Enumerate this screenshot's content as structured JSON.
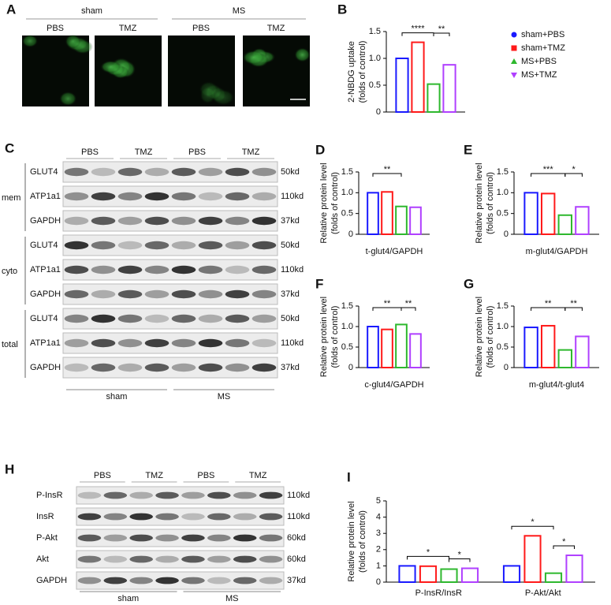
{
  "figure": {
    "A": {
      "label": "A",
      "groups": [
        "sham",
        "MS"
      ],
      "conditions": [
        "PBS",
        "TMZ",
        "PBS",
        "TMZ"
      ]
    },
    "C": {
      "label": "C",
      "conditions": [
        "PBS",
        "TMZ",
        "PBS",
        "TMZ"
      ],
      "groups": [
        "sham",
        "MS"
      ],
      "sections": [
        {
          "name": "mem",
          "rows": [
            {
              "protein": "GLUT4",
              "size": "50kd"
            },
            {
              "protein": "ATP1a1",
              "size": "110kd"
            },
            {
              "protein": "GAPDH",
              "size": "37kd"
            }
          ]
        },
        {
          "name": "cyto",
          "rows": [
            {
              "protein": "GLUT4",
              "size": "50kd"
            },
            {
              "protein": "ATP1a1",
              "size": "110kd"
            },
            {
              "protein": "GAPDH",
              "size": "37kd"
            }
          ]
        },
        {
          "name": "total",
          "rows": [
            {
              "protein": "GLUT4",
              "size": "50kd"
            },
            {
              "protein": "ATP1a1",
              "size": "110kd"
            },
            {
              "protein": "GAPDH",
              "size": "37kd"
            }
          ]
        }
      ]
    },
    "H": {
      "label": "H",
      "conditions": [
        "PBS",
        "TMZ",
        "PBS",
        "TMZ"
      ],
      "groups": [
        "sham",
        "MS"
      ],
      "rows": [
        {
          "protein": "P-InsR",
          "size": "110kd"
        },
        {
          "protein": "InsR",
          "size": "110kd"
        },
        {
          "protein": "P-Akt",
          "size": "60kd"
        },
        {
          "protein": "Akt",
          "size": "60kd"
        },
        {
          "protein": "GAPDH",
          "size": "37kd"
        }
      ]
    }
  },
  "chart_data": [
    {
      "type": "bar",
      "label": "B",
      "ylabel": [
        "2-NBDG uptake",
        "(folds of control)"
      ],
      "categories": [
        null
      ],
      "ylim": [
        0,
        1.5
      ],
      "yticks": [
        0,
        0.5,
        {
          "value": 1,
          "label": "1.0"
        },
        1.5
      ],
      "significance": [
        "****",
        "**"
      ],
      "legend": true,
      "series": [
        {
          "name": "sham+PBS",
          "color": "#1a1aff",
          "values": [
            1.0
          ]
        },
        {
          "name": "sham+TMZ",
          "color": "#ff1a1a",
          "values": [
            1.3
          ]
        },
        {
          "name": "MS+PBS",
          "color": "#2eb82e",
          "values": [
            0.52
          ]
        },
        {
          "name": "MS+TMZ",
          "color": "#b040ff",
          "values": [
            0.88
          ]
        }
      ]
    },
    {
      "type": "bar",
      "label": "D",
      "ylabel": [
        "Relative protein level",
        "(folds of control)"
      ],
      "categories": [
        "t-glut4/GAPDH"
      ],
      "ylim": [
        0,
        1.5
      ],
      "yticks": [
        0,
        0.5,
        {
          "value": 1,
          "label": "1.0"
        },
        1.5
      ],
      "significance": [
        "**"
      ],
      "series": [
        {
          "color": "#1a1aff",
          "values": [
            1.0
          ]
        },
        {
          "color": "#ff1a1a",
          "values": [
            1.02
          ]
        },
        {
          "color": "#2eb82e",
          "values": [
            0.67
          ]
        },
        {
          "color": "#b040ff",
          "values": [
            0.65
          ]
        }
      ]
    },
    {
      "type": "bar",
      "label": "E",
      "ylabel": [
        "Relative protein level",
        "(folds of control)"
      ],
      "categories": [
        "m-glut4/GAPDH"
      ],
      "ylim": [
        0,
        1.5
      ],
      "yticks": [
        0,
        0.5,
        {
          "value": 1,
          "label": "1.0"
        },
        1.5
      ],
      "significance": [
        "***",
        "*"
      ],
      "series": [
        {
          "color": "#1a1aff",
          "values": [
            1.0
          ]
        },
        {
          "color": "#ff1a1a",
          "values": [
            0.98
          ]
        },
        {
          "color": "#2eb82e",
          "values": [
            0.46
          ]
        },
        {
          "color": "#b040ff",
          "values": [
            0.66
          ]
        }
      ]
    },
    {
      "type": "bar",
      "label": "F",
      "ylabel": [
        "Relative protein level",
        "(folds of control)"
      ],
      "categories": [
        "c-glut4/GAPDH"
      ],
      "ylim": [
        0,
        1.5
      ],
      "yticks": [
        0,
        0.5,
        {
          "value": 1,
          "label": "1.0"
        },
        1.5
      ],
      "significance": [
        "**",
        "**"
      ],
      "series": [
        {
          "color": "#1a1aff",
          "values": [
            1.0
          ]
        },
        {
          "color": "#ff1a1a",
          "values": [
            0.93
          ]
        },
        {
          "color": "#2eb82e",
          "values": [
            1.05
          ]
        },
        {
          "color": "#b040ff",
          "values": [
            0.82
          ]
        }
      ]
    },
    {
      "type": "bar",
      "label": "G",
      "ylabel": [
        "Relative protein level",
        "(folds of control)"
      ],
      "categories": [
        "m-glut4/t-glut4"
      ],
      "ylim": [
        0,
        1.5
      ],
      "yticks": [
        0,
        0.5,
        {
          "value": 1,
          "label": "1.0"
        },
        1.5
      ],
      "significance": [
        "**",
        "**"
      ],
      "series": [
        {
          "color": "#1a1aff",
          "values": [
            0.98
          ]
        },
        {
          "color": "#ff1a1a",
          "values": [
            1.02
          ]
        },
        {
          "color": "#2eb82e",
          "values": [
            0.43
          ]
        },
        {
          "color": "#b040ff",
          "values": [
            0.76
          ]
        }
      ]
    },
    {
      "type": "bar",
      "label": "I",
      "ylabel": [
        "Relative protein level",
        "(folds of control)"
      ],
      "categories": [
        "P-InsR/InsR",
        "P-Akt/Akt"
      ],
      "ylim": [
        0,
        5
      ],
      "yticks": [
        0,
        1,
        2,
        3,
        4,
        5
      ],
      "significance": [
        "*",
        "*",
        "*",
        "*"
      ],
      "series": [
        {
          "color": "#1a1aff",
          "values": [
            1.0,
            1.0
          ]
        },
        {
          "color": "#ff1a1a",
          "values": [
            0.98,
            2.85
          ]
        },
        {
          "color": "#2eb82e",
          "values": [
            0.8,
            0.55
          ]
        },
        {
          "color": "#b040ff",
          "values": [
            0.85,
            1.65
          ]
        }
      ]
    }
  ]
}
